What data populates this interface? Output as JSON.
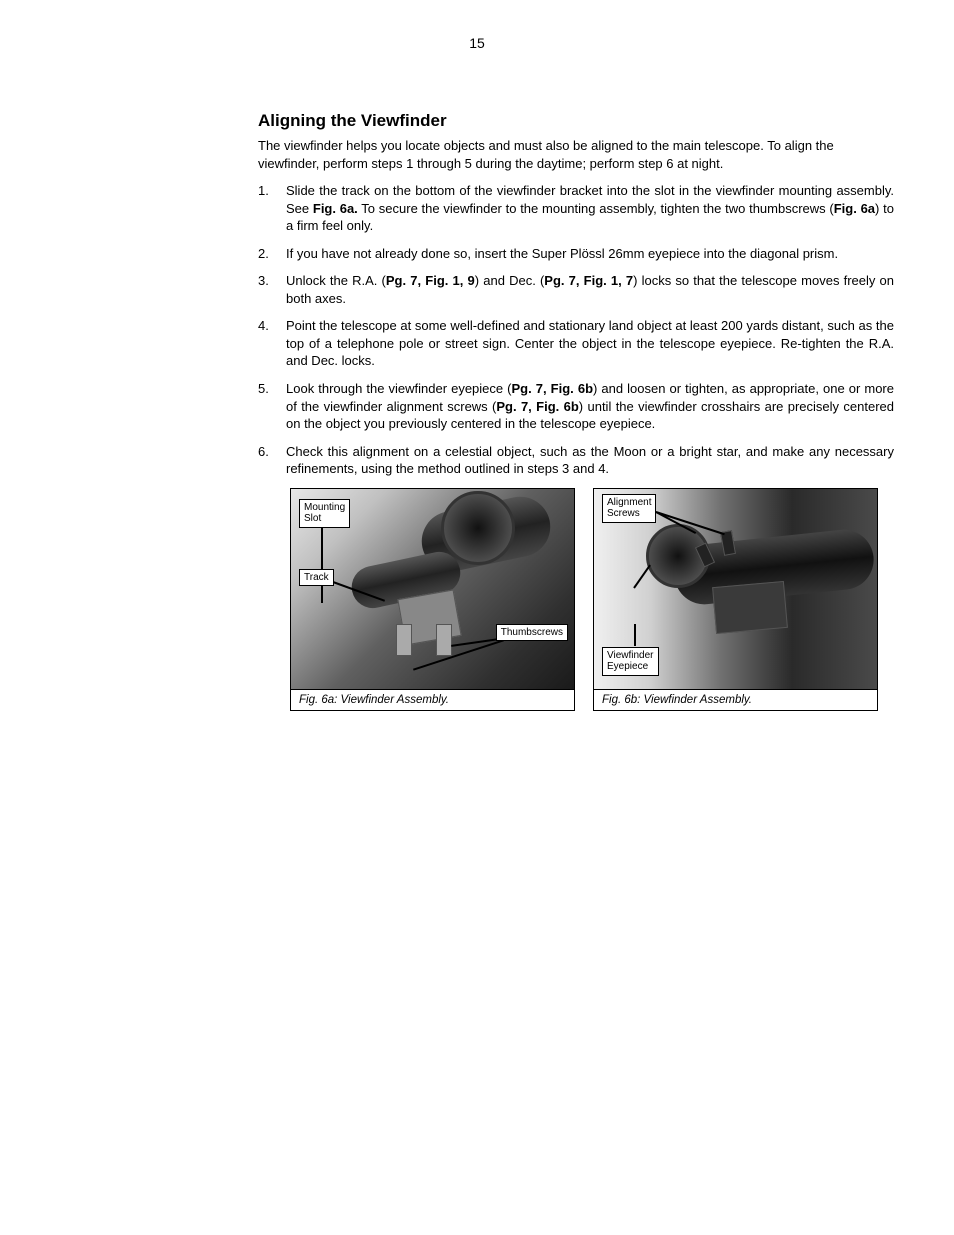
{
  "page_number": "15",
  "section_title": "Aligning the Viewfinder",
  "intro": "The viewfinder helps you locate objects and must also be aligned to the main telescope. To align the viewfinder, perform steps 1 through 5 during the daytime; perform step 6 at night.",
  "steps": [
    {
      "num": "1.",
      "parts": [
        {
          "t": "Slide the track on the bottom of the viewfinder bracket into the slot in the viewfinder mounting assembly. See "
        },
        {
          "t": "Fig. 6a.",
          "b": true
        },
        {
          "t": " To secure the viewfinder to the mounting assembly, tighten the two thumbscrews ("
        },
        {
          "t": "Fig. 6a",
          "b": true
        },
        {
          "t": ") to a firm feel only."
        }
      ]
    },
    {
      "num": "2.",
      "parts": [
        {
          "t": "If you have not already done so, insert the Super Plössl 26mm eyepiece into the diagonal prism."
        }
      ]
    },
    {
      "num": "3.",
      "parts": [
        {
          "t": "Unlock the R.A. ("
        },
        {
          "t": "Pg. 7, Fig. 1, 9",
          "b": true
        },
        {
          "t": ") and Dec. ("
        },
        {
          "t": "Pg. 7, Fig. 1, 7",
          "b": true
        },
        {
          "t": ") locks so that the telescope moves freely on both axes."
        }
      ]
    },
    {
      "num": "4.",
      "parts": [
        {
          "t": "Point the telescope at some well-defined and stationary land object at least 200 yards distant, such as the top of a telephone pole or street sign. Center the object in the telescope eyepiece. Re-tighten the R.A. and Dec. locks."
        }
      ]
    },
    {
      "num": "5.",
      "parts": [
        {
          "t": "Look through the viewfinder eyepiece ("
        },
        {
          "t": "Pg. 7, Fig. 6b",
          "b": true
        },
        {
          "t": ") and loosen or tighten, as appropriate, one or more of the viewfinder alignment screws ("
        },
        {
          "t": "Pg. 7, Fig. 6b",
          "b": true
        },
        {
          "t": ") until the viewfinder crosshairs are precisely centered on the object you previously centered in the telescope eyepiece."
        }
      ]
    },
    {
      "num": "6.",
      "parts": [
        {
          "t": "Check this alignment on a celestial object, such as the Moon or a bright star, and make any necessary refinements, using the method outlined in steps 3 and 4."
        }
      ]
    }
  ],
  "figure_a": {
    "caption": "Fig. 6a: Viewfinder Assembly.",
    "labels": {
      "mounting_slot": "Mounting\nSlot",
      "track": "Track",
      "thumbscrews": "Thumbscrews"
    }
  },
  "figure_b": {
    "caption": "Fig. 6b: Viewfinder Assembly.",
    "labels": {
      "alignment_screws": "Alignment\nScrews",
      "viewfinder_eyepiece": "Viewfinder\nEyepiece"
    }
  }
}
